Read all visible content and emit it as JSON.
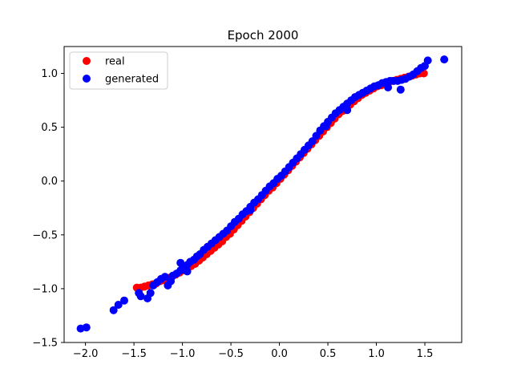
{
  "chart_data": {
    "type": "scatter",
    "title": "Epoch 2000",
    "xlabel": "",
    "ylabel": "",
    "xlim": [
      -2.22,
      1.88
    ],
    "ylim": [
      -1.5,
      1.25
    ],
    "grid": false,
    "legend_position": "top-left",
    "x_ticks": [
      {
        "value": -2.0,
        "label": "−2.0"
      },
      {
        "value": -1.5,
        "label": "−1.5"
      },
      {
        "value": -1.0,
        "label": "−1.0"
      },
      {
        "value": -0.5,
        "label": "−0.5"
      },
      {
        "value": 0.0,
        "label": "0.0"
      },
      {
        "value": 0.5,
        "label": "0.5"
      },
      {
        "value": 1.0,
        "label": "1.0"
      },
      {
        "value": 1.5,
        "label": "1.5"
      }
    ],
    "y_ticks": [
      {
        "value": -1.5,
        "label": "−1.5"
      },
      {
        "value": -1.0,
        "label": "−1.0"
      },
      {
        "value": -0.5,
        "label": "−0.5"
      },
      {
        "value": 0.0,
        "label": "0.0"
      },
      {
        "value": 0.5,
        "label": "0.5"
      },
      {
        "value": 1.0,
        "label": "1.0"
      }
    ],
    "series": [
      {
        "name": "real",
        "color": "#ff0000",
        "x": [
          -1.47,
          -1.43,
          -1.39,
          -1.35,
          -1.31,
          -1.27,
          -1.23,
          -1.19,
          -1.15,
          -1.11,
          -1.07,
          -1.03,
          -0.99,
          -0.95,
          -0.91,
          -0.87,
          -0.83,
          -0.79,
          -0.75,
          -0.71,
          -0.67,
          -0.63,
          -0.59,
          -0.55,
          -0.51,
          -0.47,
          -0.43,
          -0.39,
          -0.35,
          -0.31,
          -0.27,
          -0.23,
          -0.19,
          -0.15,
          -0.11,
          -0.07,
          -0.03,
          0.01,
          0.05,
          0.09,
          0.13,
          0.17,
          0.21,
          0.25,
          0.29,
          0.33,
          0.37,
          0.41,
          0.45,
          0.49,
          0.53,
          0.57,
          0.61,
          0.65,
          0.69,
          0.73,
          0.77,
          0.81,
          0.85,
          0.89,
          0.93,
          0.97,
          1.01,
          1.05,
          1.09,
          1.13,
          1.17,
          1.21,
          1.25,
          1.29,
          1.33,
          1.37,
          1.41,
          1.45,
          1.49
        ],
        "y": [
          -0.99,
          -0.99,
          -0.98,
          -0.97,
          -0.96,
          -0.95,
          -0.93,
          -0.92,
          -0.9,
          -0.89,
          -0.87,
          -0.85,
          -0.83,
          -0.81,
          -0.79,
          -0.77,
          -0.74,
          -0.71,
          -0.68,
          -0.65,
          -0.62,
          -0.59,
          -0.56,
          -0.52,
          -0.49,
          -0.45,
          -0.41,
          -0.37,
          -0.33,
          -0.29,
          -0.25,
          -0.21,
          -0.17,
          -0.13,
          -0.09,
          -0.06,
          -0.02,
          0.02,
          0.06,
          0.1,
          0.14,
          0.18,
          0.22,
          0.26,
          0.3,
          0.34,
          0.38,
          0.42,
          0.46,
          0.5,
          0.54,
          0.58,
          0.62,
          0.65,
          0.68,
          0.71,
          0.74,
          0.77,
          0.8,
          0.82,
          0.84,
          0.86,
          0.88,
          0.89,
          0.91,
          0.92,
          0.93,
          0.94,
          0.95,
          0.96,
          0.97,
          0.98,
          0.99,
          1.0,
          1.0
        ]
      },
      {
        "name": "generated",
        "color": "#0000ff",
        "x": [
          -2.05,
          -1.99,
          -1.71,
          -1.66,
          -1.6,
          -1.45,
          -1.43,
          -1.36,
          -1.33,
          -1.3,
          -1.26,
          -1.22,
          -1.18,
          -1.15,
          -1.12,
          -1.1,
          -1.06,
          -1.02,
          -0.98,
          -0.95,
          -0.92,
          -0.88,
          -0.85,
          -0.82,
          -0.78,
          -0.74,
          -0.7,
          -0.66,
          -0.62,
          -0.58,
          -0.54,
          -0.5,
          -0.46,
          -0.42,
          -0.38,
          -0.34,
          -0.3,
          -0.26,
          -0.22,
          -0.18,
          -0.14,
          -0.1,
          -0.06,
          -0.02,
          0.02,
          0.06,
          0.1,
          0.14,
          0.18,
          0.22,
          0.26,
          0.3,
          0.34,
          0.38,
          0.42,
          0.46,
          0.5,
          0.54,
          0.58,
          0.62,
          0.66,
          0.7,
          0.74,
          0.78,
          0.82,
          0.86,
          0.9,
          0.94,
          0.98,
          1.02,
          1.06,
          1.1,
          1.14,
          1.18,
          1.22,
          1.26,
          1.3,
          1.34,
          1.38,
          1.42,
          1.46,
          1.5,
          1.53,
          1.7,
          -1.02,
          -0.95,
          -0.3,
          0.48,
          0.7,
          1.25,
          1.12
        ],
        "y": [
          -1.37,
          -1.36,
          -1.2,
          -1.15,
          -1.11,
          -1.04,
          -1.07,
          -1.09,
          -1.04,
          -0.97,
          -0.94,
          -0.91,
          -0.89,
          -0.97,
          -0.93,
          -0.88,
          -0.86,
          -0.83,
          -0.8,
          -0.78,
          -0.75,
          -0.73,
          -0.7,
          -0.68,
          -0.64,
          -0.61,
          -0.58,
          -0.55,
          -0.52,
          -0.49,
          -0.46,
          -0.42,
          -0.38,
          -0.35,
          -0.31,
          -0.28,
          -0.24,
          -0.2,
          -0.17,
          -0.13,
          -0.09,
          -0.05,
          -0.02,
          0.02,
          0.05,
          0.09,
          0.13,
          0.17,
          0.21,
          0.25,
          0.29,
          0.33,
          0.37,
          0.42,
          0.47,
          0.51,
          0.55,
          0.59,
          0.63,
          0.66,
          0.69,
          0.72,
          0.75,
          0.78,
          0.8,
          0.82,
          0.84,
          0.86,
          0.88,
          0.89,
          0.91,
          0.92,
          0.93,
          0.93,
          0.93,
          0.94,
          0.95,
          0.97,
          0.99,
          1.02,
          1.05,
          1.07,
          1.12,
          1.13,
          -0.76,
          -0.84,
          -0.27,
          0.51,
          0.66,
          0.85,
          0.87
        ]
      }
    ]
  }
}
